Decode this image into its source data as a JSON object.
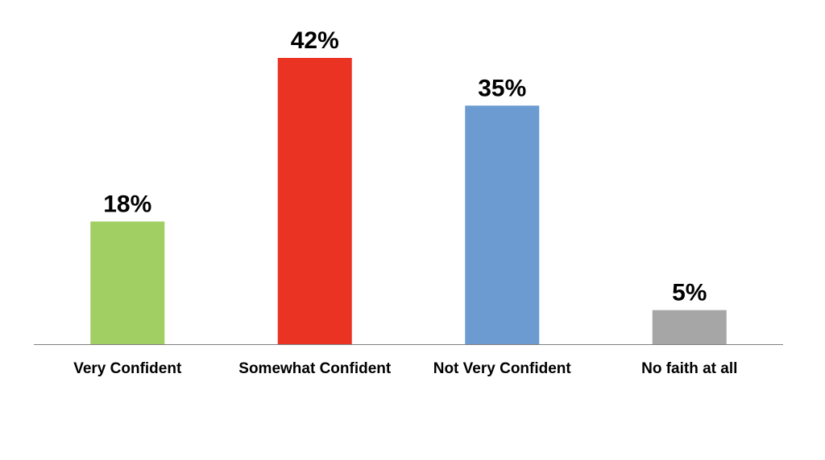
{
  "chart_data": {
    "type": "bar",
    "title": "",
    "xlabel": "",
    "ylabel": "",
    "categories": [
      "Very Confident",
      "Somewhat Confident",
      "Not Very Confident",
      "No faith at all"
    ],
    "values": [
      18,
      42,
      35,
      5
    ],
    "value_labels": [
      "18%",
      "42%",
      "35%",
      "5%"
    ],
    "colors": [
      "#a1cf63",
      "#ea3323",
      "#6b9bd1",
      "#a6a6a6"
    ],
    "ylim": [
      0,
      42
    ],
    "grid": false,
    "legend": "none"
  }
}
